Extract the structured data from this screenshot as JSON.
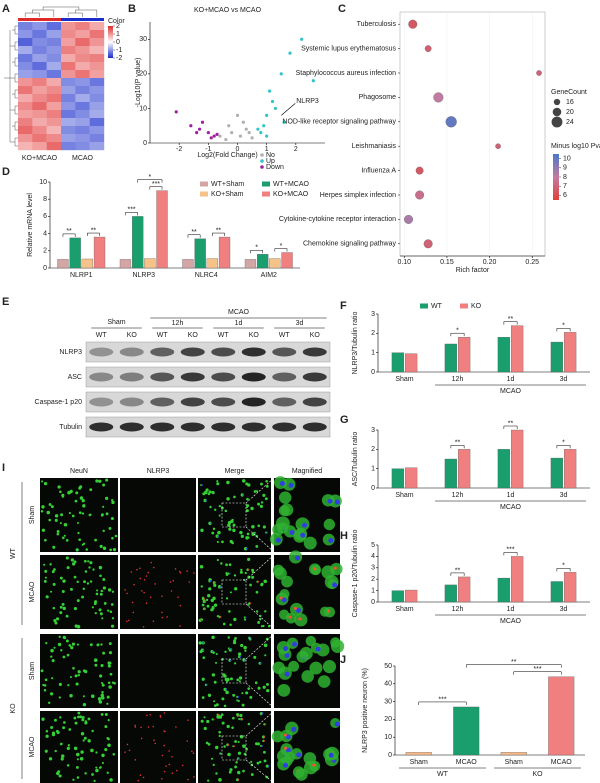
{
  "chart_data": [
    {
      "panel": "A",
      "type": "heatmap",
      "groups": [
        "KO+MCAO",
        "MCAO"
      ],
      "group_colors": [
        "#e02a2a",
        "#1a2dcc"
      ],
      "colorbar_title": "Color",
      "clim": [
        -2,
        2
      ],
      "colorbar_ticks": [
        2,
        1,
        0,
        -1,
        -2
      ],
      "colors": [
        "#1a2dcc",
        "#ffffff",
        "#e02a2a"
      ],
      "values": [
        [
          -1.2,
          -1.0,
          -1.4,
          1.0,
          1.2,
          0.8
        ],
        [
          -1.0,
          -1.3,
          -0.9,
          1.1,
          0.9,
          1.3
        ],
        [
          -1.5,
          -1.1,
          -1.2,
          0.9,
          1.4,
          1.0
        ],
        [
          -0.8,
          -1.2,
          -1.0,
          1.2,
          1.0,
          0.7
        ],
        [
          -1.3,
          -0.9,
          -1.1,
          0.8,
          1.1,
          1.2
        ],
        [
          -1.1,
          -1.4,
          -0.8,
          1.3,
          0.8,
          1.0
        ],
        [
          -0.9,
          -1.0,
          -1.3,
          1.0,
          1.3,
          0.9
        ],
        [
          1.0,
          1.2,
          0.8,
          -1.1,
          -1.0,
          -1.3
        ],
        [
          1.3,
          0.9,
          1.1,
          -0.9,
          -1.2,
          -1.0
        ],
        [
          0.8,
          1.1,
          1.3,
          -1.2,
          -0.8,
          -1.1
        ],
        [
          1.1,
          1.4,
          0.9,
          -1.0,
          -1.3,
          -0.9
        ],
        [
          0.9,
          1.0,
          1.2,
          -1.3,
          -1.1,
          -0.8
        ],
        [
          1.2,
          0.8,
          1.0,
          -0.8,
          -0.9,
          -1.4
        ],
        [
          1.4,
          1.1,
          0.7,
          -1.1,
          -1.2,
          -1.0
        ],
        [
          1.0,
          1.3,
          1.1,
          -0.9,
          -1.0,
          -1.2
        ],
        [
          0.7,
          0.9,
          1.4,
          -1.2,
          -1.1,
          -0.9
        ]
      ]
    },
    {
      "panel": "B",
      "type": "scatter",
      "title": "KO+MCAO vs MCAO",
      "xlabel": "Log2(Fold Change)",
      "ylabel": "-Log10(P value)",
      "xlim": [
        -3,
        3
      ],
      "xticks": [
        -2,
        -1,
        0,
        1,
        2
      ],
      "ylim": [
        0,
        35
      ],
      "yticks": [
        0,
        10,
        20,
        30
      ],
      "annotation": {
        "text": "NLRP3",
        "x": 1.5,
        "y": 8
      },
      "series": [
        {
          "name": "No",
          "color": "#b0b0b0",
          "x": [
            -0.4,
            -0.2,
            0.1,
            0.3,
            0.5,
            -0.6,
            0.2,
            0.0,
            -0.3,
            0.4
          ],
          "values": [
            1,
            3,
            2,
            4,
            1.5,
            2,
            6,
            8,
            5,
            3
          ]
        },
        {
          "name": "Up",
          "color": "#33c4c8",
          "x": [
            0.8,
            1.0,
            1.2,
            1.5,
            0.9,
            1.1,
            1.8,
            2.2,
            1.3,
            0.7,
            1.6,
            1.0,
            2.6
          ],
          "values": [
            3,
            8,
            12,
            20,
            5,
            15,
            26,
            30,
            10,
            4,
            6,
            2,
            18
          ]
        },
        {
          "name": "Down",
          "color": "#a020a0",
          "x": [
            -0.8,
            -1.0,
            -1.3,
            -1.6,
            -0.9,
            -1.2,
            -2.1,
            -0.7,
            -1.4
          ],
          "values": [
            2,
            3,
            4,
            5,
            1.5,
            6,
            9,
            2.5,
            3
          ]
        }
      ]
    },
    {
      "panel": "C",
      "type": "bubble",
      "xlabel": "Rich factor",
      "categories": [
        "Tuberculosis",
        "Systemic lupus erythematosus",
        "Staphylococcus aureus infection",
        "Phagosome",
        "NOD-like receptor signaling pathway",
        "Leishmaniasis",
        "Influenza A",
        "Herpes simplex infection",
        "Cytokine-cytokine receptor interaction",
        "Chemokine signaling pathway"
      ],
      "label_colors": [
        "#333333",
        "#333333",
        "#333333",
        "#333333",
        "#e02020",
        "#333333",
        "#333333",
        "#333333",
        "#333333",
        "#333333"
      ],
      "values": [
        0.11,
        0.128,
        0.258,
        0.14,
        0.155,
        0.21,
        0.118,
        0.118,
        0.105,
        0.128
      ],
      "sizes": [
        20,
        16,
        14,
        22,
        24,
        14,
        18,
        20,
        20,
        20
      ],
      "color_values": [
        6.5,
        6.8,
        7,
        8,
        10,
        7,
        6.5,
        7.5,
        8.5,
        7
      ],
      "xlim": [
        0.095,
        0.265
      ],
      "xticks": [
        {
          "value": 0.1,
          "label": "0.10"
        },
        0.15,
        {
          "value": 0.2,
          "label": "0.20"
        },
        0.25
      ],
      "size_title": "GeneCount",
      "size_ticks": [
        16,
        20,
        24
      ],
      "color_title": "Minus log10 Pvalue",
      "clim": [
        5.5,
        10.5
      ],
      "color_ticks": [
        10,
        9,
        8,
        7,
        6
      ],
      "colors": [
        "#e0403a",
        "#c27ba0",
        "#4a78c8"
      ]
    },
    {
      "panel": "D",
      "type": "bar",
      "ylabel": "Relative mRNA level",
      "categories": [
        "NLRP1",
        "NLRP3",
        "NLRC4",
        "AIM2"
      ],
      "ylim": [
        0,
        10
      ],
      "yticks": [
        0,
        2,
        4,
        6,
        8,
        10
      ],
      "legend": true,
      "series": [
        {
          "name": "WT+Sham",
          "color": "#d4a5a5",
          "values": [
            1,
            1,
            1,
            1
          ]
        },
        {
          "name": "WT+MCAO",
          "color": "#1b9e6e",
          "values": [
            3.5,
            6,
            3.4,
            1.6
          ]
        },
        {
          "name": "KO+Sham",
          "color": "#f5c28a",
          "values": [
            1.05,
            1.1,
            1.1,
            1.1
          ]
        },
        {
          "name": "KO+MCAO",
          "color": "#f08080",
          "values": [
            3.6,
            9,
            3.6,
            1.8
          ]
        }
      ],
      "significance": [
        [
          "**",
          "**"
        ],
        [
          "***",
          "***"
        ],
        [
          "**",
          "**"
        ],
        [
          "*",
          "*"
        ]
      ],
      "significance_between": [
        null,
        "*",
        null,
        null
      ]
    },
    {
      "panel": "F",
      "type": "bar",
      "ylabel": "NLRP3/Tubulin ratio",
      "categories": [
        "Sham",
        "12h",
        "1d",
        "3d"
      ],
      "groups": [
        "MCAO"
      ],
      "ylim": [
        0,
        3
      ],
      "yticks": [
        0,
        1,
        2,
        3
      ],
      "legend": true,
      "series": [
        {
          "name": "WT",
          "color": "#1b9e6e",
          "values": [
            1,
            1.45,
            1.8,
            1.55
          ]
        },
        {
          "name": "KO",
          "color": "#f08080",
          "values": [
            0.95,
            1.8,
            2.4,
            2.05
          ]
        }
      ],
      "significance": [
        null,
        "*",
        "**",
        "*"
      ]
    },
    {
      "panel": "G",
      "type": "bar",
      "ylabel": "ASC/Tubulin ratio",
      "categories": [
        "Sham",
        "12h",
        "1d",
        "3d"
      ],
      "groups": [
        "MCAO"
      ],
      "ylim": [
        0,
        3
      ],
      "yticks": [
        0,
        1,
        2,
        3
      ],
      "legend": false,
      "series": [
        {
          "color": "#1b9e6e",
          "values": [
            1,
            1.5,
            2,
            1.55
          ]
        },
        {
          "color": "#f08080",
          "values": [
            1.05,
            2,
            3,
            2
          ]
        }
      ],
      "significance": [
        null,
        "**",
        "**",
        "*"
      ]
    },
    {
      "panel": "H",
      "type": "bar",
      "ylabel": "Caspase-1 p20/Tubulin ratio",
      "categories": [
        "Sham",
        "12h",
        "1d",
        "3d"
      ],
      "groups": [
        "MCAO"
      ],
      "ylim": [
        0,
        5
      ],
      "yticks": [
        0,
        1,
        2,
        3,
        4,
        5
      ],
      "legend": false,
      "series": [
        {
          "color": "#1b9e6e",
          "values": [
            1,
            1.5,
            2.1,
            1.8
          ]
        },
        {
          "color": "#f08080",
          "values": [
            1.05,
            2.2,
            4,
            2.6
          ]
        }
      ],
      "significance": [
        null,
        "**",
        "***",
        "*"
      ]
    },
    {
      "panel": "J",
      "type": "bar",
      "ylabel": "NLRP3 positive neuron (%)",
      "categories": [
        "Sham",
        "MCAO",
        "Sham",
        "MCAO"
      ],
      "groups": [
        "WT",
        "KO"
      ],
      "ylim": [
        0,
        50
      ],
      "yticks": [
        0,
        10,
        20,
        30,
        40,
        50
      ],
      "legend": false,
      "values": [
        1.5,
        27,
        1.5,
        44
      ],
      "colors": [
        "#f5b98a",
        "#1b9e6e",
        "#f5b98a",
        "#f08080"
      ],
      "significance": [
        "***",
        "***",
        "**"
      ]
    }
  ],
  "blot": {
    "panel": "E",
    "sham": "Sham",
    "mcao": "MCAO",
    "timepoints": [
      "12h",
      "1d",
      "3d"
    ],
    "lanes": [
      "WT",
      "KO",
      "WT",
      "KO",
      "WT",
      "KO",
      "WT",
      "KO"
    ],
    "rows": [
      "NLRP3",
      "ASC",
      "Caspase-1 p20",
      "Tubulin"
    ]
  },
  "micrographs": {
    "panel": "I",
    "columns": [
      "NeuN",
      "NLRP3",
      "Merge",
      "Magnified"
    ],
    "genotypes": [
      "WT",
      "KO"
    ],
    "conditions": [
      "Sham",
      "MCAO",
      "Sham",
      "MCAO"
    ]
  }
}
